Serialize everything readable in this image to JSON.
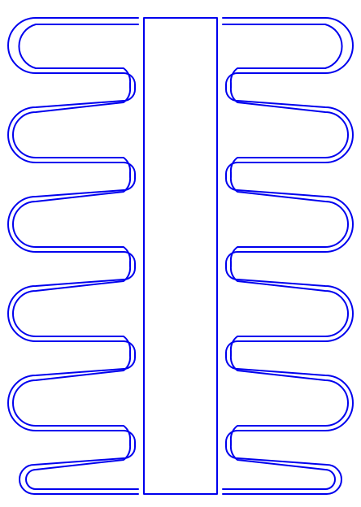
{
  "drawing": {
    "description_labels": [],
    "stroke_color": "#0000ee",
    "background_color": "#ffffff",
    "serpentine_count_per_side": 2,
    "loops_per_side": 5
  }
}
